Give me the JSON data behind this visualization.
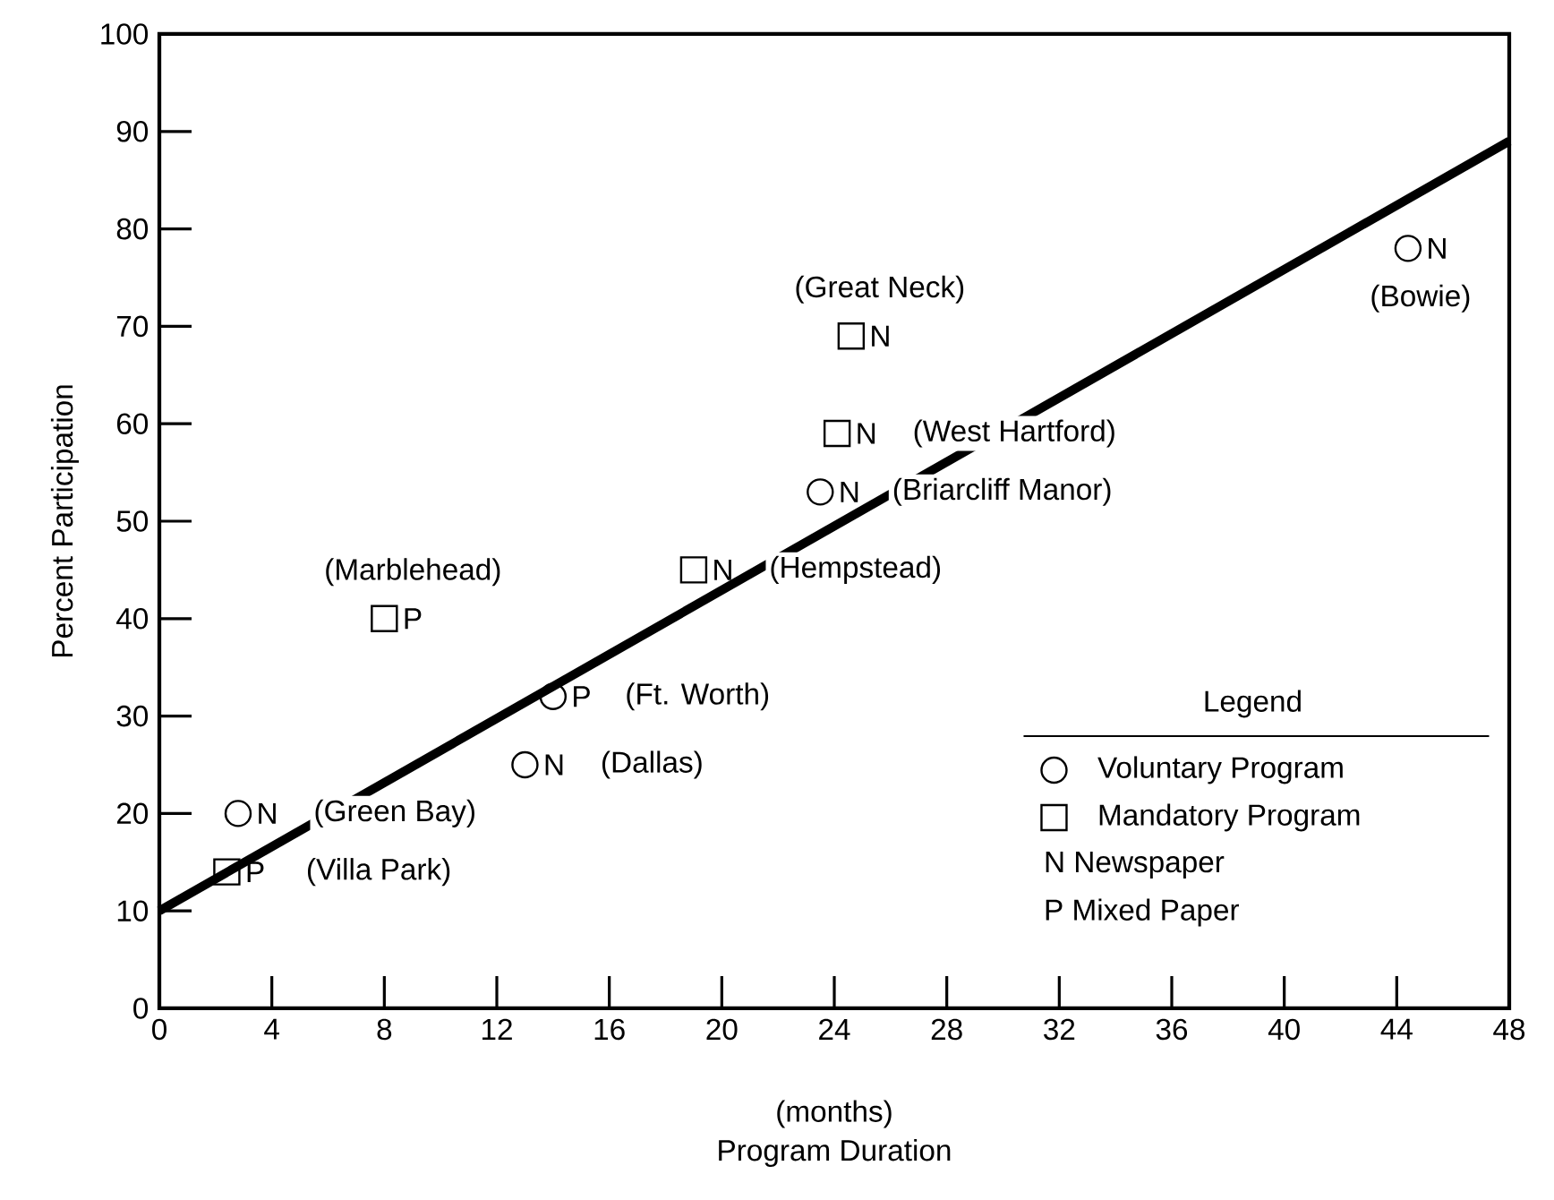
{
  "chart_data": {
    "type": "scatter",
    "xlabel": "Program Duration",
    "ylabel": "Percent Participation",
    "legend_title": "Legend",
    "legend": "bottom right",
    "xlim": [
      0,
      48
    ],
    "ylim": [
      0,
      100
    ],
    "xticks": [
      0,
      4,
      8,
      12,
      16,
      20,
      24,
      28,
      32,
      36,
      40,
      44,
      48
    ],
    "yticks": [
      0,
      10,
      20,
      30,
      40,
      50,
      60,
      70,
      80,
      90,
      100
    ],
    "series": [
      {
        "type": "line",
        "color": "#000000",
        "x": [
          0,
          48
        ],
        "values": [
          10,
          89
        ]
      },
      {
        "name": "Voluntary Program",
        "marker": "circle",
        "color": "#000000",
        "x": [
          2.8,
          13,
          14,
          23.5,
          44.4
        ],
        "values": [
          20,
          25,
          32,
          53,
          78
        ],
        "value_labels": [
          "N",
          "N",
          "P",
          "N",
          "N"
        ]
      },
      {
        "name": "Mandatory Program",
        "marker": "square",
        "color": "#000000",
        "x": [
          2.4,
          8,
          19,
          24.1,
          24.6
        ],
        "values": [
          14,
          40,
          45,
          59,
          69
        ],
        "value_labels": [
          "P",
          "P",
          "N",
          "N",
          "N"
        ]
      }
    ],
    "annotations": [
      {
        "text": "(Villa Park)",
        "x": 2.4,
        "y": 14
      },
      {
        "text": "(Green Bay)",
        "x": 2.8,
        "y": 20
      },
      {
        "text": "(Marblehead)",
        "x": 8,
        "y": 40
      },
      {
        "text": "(Dallas)",
        "x": 13,
        "y": 25
      },
      {
        "text": "(Ft. Worth)",
        "x": 14,
        "y": 32
      },
      {
        "text": "(Hempstead)",
        "x": 19,
        "y": 45
      },
      {
        "text": "(Briarcliff Manor)",
        "x": 23.5,
        "y": 53
      },
      {
        "text": "(West Hartford)",
        "x": 24.1,
        "y": 59
      },
      {
        "text": "(Great Neck)",
        "x": 24.6,
        "y": 69
      },
      {
        "text": "(Bowie)",
        "x": 44.4,
        "y": 78
      },
      "(months)",
      "N Newspaper",
      "P Mixed Paper"
    ]
  }
}
